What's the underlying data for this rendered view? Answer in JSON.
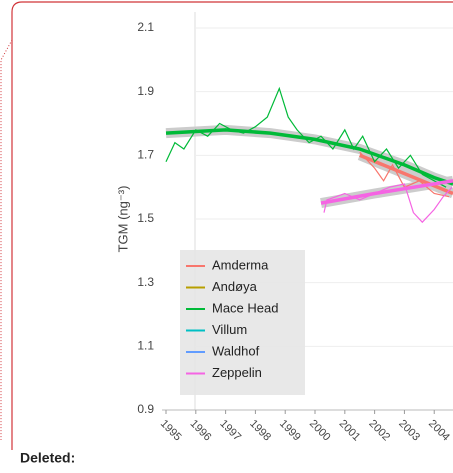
{
  "document_label": "Deleted:",
  "chart_data": {
    "type": "line",
    "y_label": "TGM (ng⁻³)",
    "xlim": [
      1995,
      2004.63
    ],
    "ylim": [
      0.9,
      2.1
    ],
    "xticks": [
      1995,
      1996,
      1997,
      1998,
      1999,
      2000,
      2001,
      2002,
      2003,
      2004
    ],
    "yticks": [
      0.9,
      1.1,
      1.3,
      1.5,
      1.7,
      1.9,
      2.1
    ],
    "grid": true,
    "legend": "bottom-left",
    "series": [
      {
        "name": "Amderma",
        "color": "#f8766d",
        "x": [
          2001.5,
          2002,
          2002.3,
          2002.6,
          2003,
          2003.5,
          2004,
          2004.5
        ],
        "values": [
          1.71,
          1.66,
          1.62,
          1.67,
          1.6,
          1.62,
          1.58,
          1.57
        ],
        "trend_x": [
          2001.5,
          2004.63
        ],
        "trend": [
          1.7,
          1.58
        ]
      },
      {
        "name": "Andøya",
        "color": "#b79f00",
        "x": [],
        "values": [],
        "trend_x": [],
        "trend": []
      },
      {
        "name": "Mace Head",
        "color": "#00ba38",
        "x": [
          1995,
          1995.3,
          1995.6,
          1996,
          1996.4,
          1996.8,
          1997.2,
          1997.6,
          1998,
          1998.4,
          1998.8,
          1999.1,
          1999.4,
          1999.8,
          2000.2,
          2000.6,
          2001,
          2001.3,
          2001.6,
          2002,
          2002.4,
          2002.8,
          2003.2,
          2003.6,
          2004,
          2004.4
        ],
        "values": [
          1.68,
          1.74,
          1.72,
          1.78,
          1.76,
          1.8,
          1.78,
          1.77,
          1.79,
          1.82,
          1.91,
          1.82,
          1.78,
          1.74,
          1.76,
          1.72,
          1.78,
          1.72,
          1.76,
          1.68,
          1.72,
          1.66,
          1.7,
          1.64,
          1.62,
          1.6
        ],
        "trend_x": [
          1995,
          1997,
          1998.5,
          2000,
          2001.5,
          2003,
          2004,
          2004.63
        ],
        "trend": [
          1.77,
          1.78,
          1.77,
          1.75,
          1.72,
          1.67,
          1.63,
          1.61
        ]
      },
      {
        "name": "Villum",
        "color": "#00bfc4",
        "x": [],
        "values": [],
        "trend_x": [],
        "trend": []
      },
      {
        "name": "Waldhof",
        "color": "#619cff",
        "x": [],
        "values": [],
        "trend_x": [],
        "trend": []
      },
      {
        "name": "Zeppelin",
        "color": "#f564e3",
        "x": [
          2000.3,
          2000.4,
          2001,
          2001.5,
          2002,
          2002.5,
          2003,
          2003.3,
          2003.6,
          2004,
          2004.3,
          2004.6
        ],
        "values": [
          1.52,
          1.56,
          1.58,
          1.56,
          1.58,
          1.6,
          1.61,
          1.52,
          1.49,
          1.53,
          1.57,
          1.6
        ],
        "trend_x": [
          2000.2,
          2002,
          2004.63
        ],
        "trend": [
          1.55,
          1.58,
          1.62
        ]
      }
    ]
  }
}
